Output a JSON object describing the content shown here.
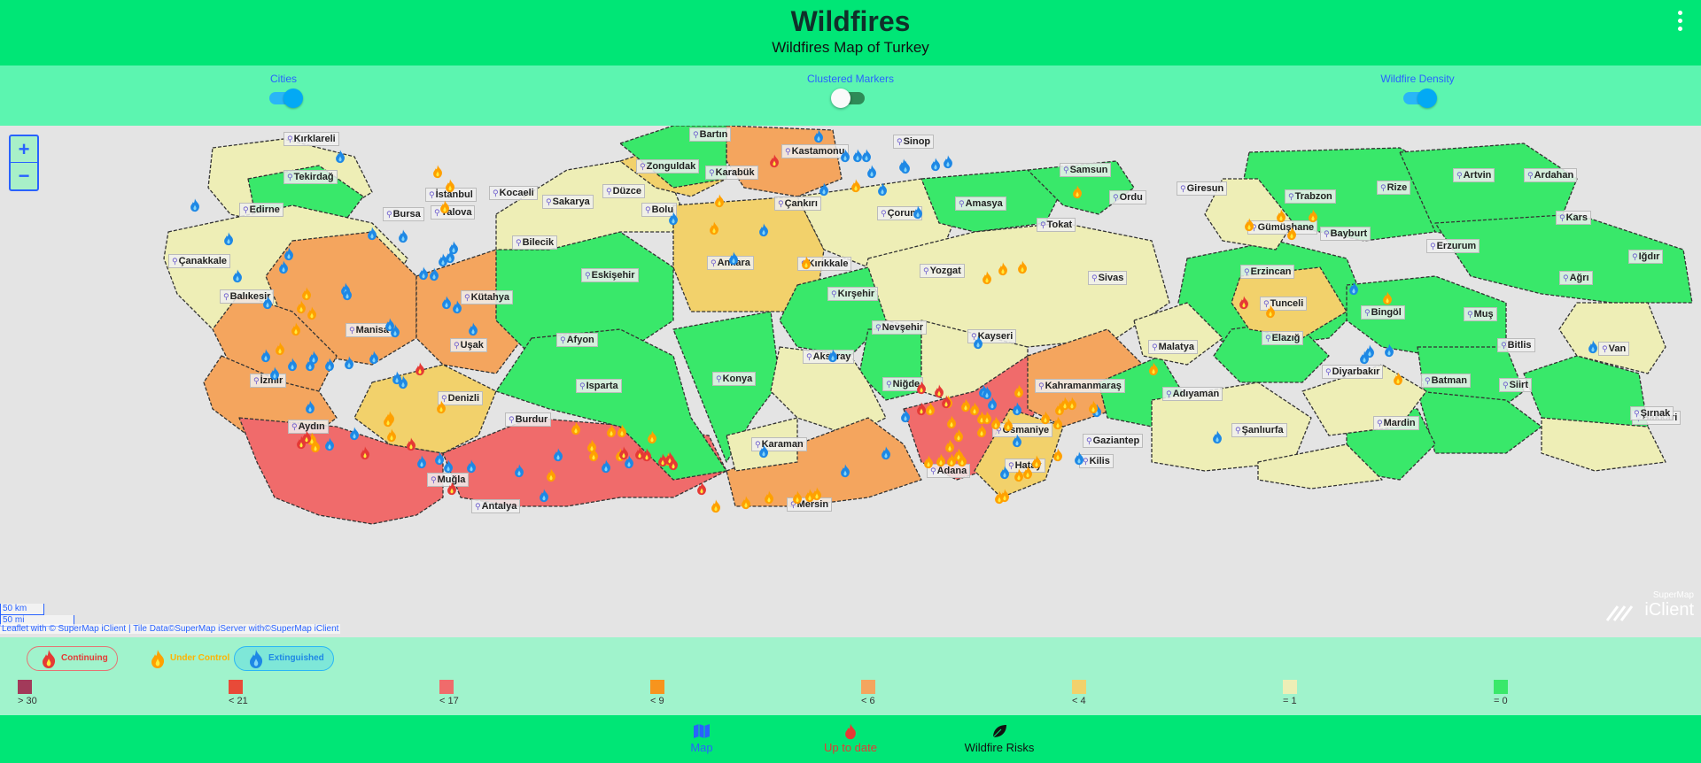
{
  "header": {
    "title": "Wildfires",
    "subtitle": "Wildfires Map of Turkey"
  },
  "toggles": [
    {
      "label": "Cities",
      "state": "on"
    },
    {
      "label": "Clustered Markers",
      "state": "off"
    },
    {
      "label": "Wildfire Density",
      "state": "on"
    }
  ],
  "map": {
    "zoom_in": "+",
    "zoom_out": "−",
    "scale_km": "50 km",
    "scale_mi": "50 mi",
    "attribution": "Leaflet with © SuperMap iClient | Tile Data©SuperMap iServer with©SuperMap iClient",
    "brand_top": "SuperMap",
    "brand_bottom": "iClient",
    "cities": [
      "Kırklareli",
      "Tekirdağ",
      "Edirne",
      "İstanbul",
      "Kocaeli",
      "Sakarya",
      "Yalova",
      "Bursa",
      "Bilecik",
      "Çanakkale",
      "Balıkesir",
      "Kütahya",
      "Manisa",
      "Uşak",
      "İzmir",
      "Aydın",
      "Denizli",
      "Muğla",
      "Burdur",
      "Antalya",
      "Isparta",
      "Afyon",
      "Eskişehir",
      "Bartın",
      "Zonguldak",
      "Karabük",
      "Düzce",
      "Bolu",
      "Kastamonu",
      "Çankırı",
      "Sinop",
      "Çorum",
      "Samsun",
      "Amasya",
      "Tokat",
      "Ordu",
      "Giresun",
      "Trabzon",
      "Rize",
      "Artvin",
      "Ardahan",
      "Gümüşhane",
      "Bayburt",
      "Erzurum",
      "Kars",
      "Iğdır",
      "Ağrı",
      "Erzincan",
      "Sivas",
      "Yozgat",
      "Kırıkkale",
      "Ankara",
      "Kırşehir",
      "Nevşehir",
      "Kayseri",
      "Aksaray",
      "Niğde",
      "Konya",
      "Karaman",
      "Mersin",
      "Adana",
      "Osmaniye",
      "Hatay",
      "Kilis",
      "Gaziantep",
      "Kahramanmaraş",
      "Adıyaman",
      "Malatya",
      "Elazığ",
      "Tunceli",
      "Bingöl",
      "Muş",
      "Bitlis",
      "Van",
      "Hakkari",
      "Şırnak",
      "Siirt",
      "Batman",
      "Mardin",
      "Diyarbakır",
      "Şanlıurfa"
    ],
    "colors": {
      "base": "#e4e4e4"
    }
  },
  "legend": {
    "status": [
      {
        "label": "Continuing",
        "color": "#e53935"
      },
      {
        "label": "Under Control",
        "color": "#ffb300"
      },
      {
        "label": "Extinguished",
        "color": "#1e88e5"
      }
    ],
    "density": [
      {
        "label": "> 30",
        "color": "#a23a5a"
      },
      {
        "label": "< 21",
        "color": "#e84a38"
      },
      {
        "label": "< 17",
        "color": "#f06b6b"
      },
      {
        "label": "< 9",
        "color": "#f7941d"
      },
      {
        "label": "< 6",
        "color": "#f4a55e"
      },
      {
        "label": "< 4",
        "color": "#f2d16b"
      },
      {
        "label": "= 1",
        "color": "#eeeeb6"
      },
      {
        "label": "= 0",
        "color": "#39e86a"
      }
    ]
  },
  "nav": [
    {
      "label": "Map",
      "color": "#2962ff"
    },
    {
      "label": "Up to date",
      "color": "#e53935"
    },
    {
      "label": "Wildfire Risks",
      "color": "#111111"
    }
  ]
}
